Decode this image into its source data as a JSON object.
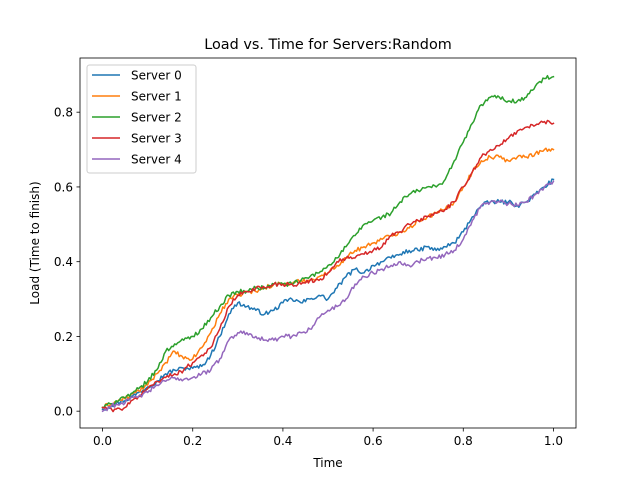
{
  "chart_data": {
    "type": "line",
    "title": "Load vs. Time for Servers:Random",
    "xlabel": "Time",
    "ylabel": "Load (Time to finish)",
    "xlim": [
      -0.05,
      1.05
    ],
    "ylim": [
      -0.045,
      0.945
    ],
    "xticks": [
      0.0,
      0.2,
      0.4,
      0.6,
      0.8,
      1.0
    ],
    "xtick_labels": [
      "0.0",
      "0.2",
      "0.4",
      "0.6",
      "0.8",
      "1.0"
    ],
    "yticks": [
      0.0,
      0.2,
      0.4,
      0.6,
      0.8
    ],
    "ytick_labels": [
      "0.0",
      "0.2",
      "0.4",
      "0.6",
      "0.8"
    ],
    "grid": false,
    "legend_position": "upper-left",
    "series": [
      {
        "name": "Server 0",
        "color": "#1f77b4",
        "x": [
          0.0,
          0.02,
          0.04,
          0.06,
          0.08,
          0.1,
          0.12,
          0.14,
          0.16,
          0.18,
          0.2,
          0.22,
          0.24,
          0.26,
          0.28,
          0.3,
          0.32,
          0.34,
          0.36,
          0.38,
          0.4,
          0.42,
          0.44,
          0.46,
          0.48,
          0.5,
          0.52,
          0.54,
          0.56,
          0.58,
          0.6,
          0.62,
          0.64,
          0.66,
          0.68,
          0.7,
          0.72,
          0.74,
          0.76,
          0.78,
          0.8,
          0.82,
          0.84,
          0.86,
          0.88,
          0.9,
          0.92,
          0.94,
          0.96,
          0.98,
          1.0
        ],
        "y": [
          0.005,
          0.015,
          0.025,
          0.035,
          0.05,
          0.065,
          0.08,
          0.1,
          0.11,
          0.115,
          0.115,
          0.12,
          0.15,
          0.2,
          0.26,
          0.29,
          0.28,
          0.27,
          0.26,
          0.27,
          0.29,
          0.3,
          0.29,
          0.3,
          0.31,
          0.3,
          0.33,
          0.36,
          0.38,
          0.37,
          0.39,
          0.4,
          0.41,
          0.42,
          0.43,
          0.43,
          0.44,
          0.43,
          0.44,
          0.45,
          0.48,
          0.52,
          0.55,
          0.56,
          0.56,
          0.56,
          0.55,
          0.56,
          0.58,
          0.6,
          0.62
        ]
      },
      {
        "name": "Server 1",
        "color": "#ff7f0e",
        "x": [
          0.0,
          0.02,
          0.04,
          0.06,
          0.08,
          0.1,
          0.12,
          0.14,
          0.16,
          0.18,
          0.2,
          0.22,
          0.24,
          0.26,
          0.28,
          0.3,
          0.32,
          0.34,
          0.36,
          0.38,
          0.4,
          0.42,
          0.44,
          0.46,
          0.48,
          0.5,
          0.52,
          0.54,
          0.56,
          0.58,
          0.6,
          0.62,
          0.64,
          0.66,
          0.68,
          0.7,
          0.72,
          0.74,
          0.76,
          0.78,
          0.8,
          0.82,
          0.84,
          0.86,
          0.88,
          0.9,
          0.92,
          0.94,
          0.96,
          0.98,
          1.0
        ],
        "y": [
          0.01,
          0.02,
          0.03,
          0.04,
          0.055,
          0.07,
          0.1,
          0.13,
          0.16,
          0.14,
          0.14,
          0.17,
          0.21,
          0.26,
          0.3,
          0.31,
          0.32,
          0.32,
          0.33,
          0.34,
          0.34,
          0.34,
          0.35,
          0.35,
          0.36,
          0.37,
          0.39,
          0.41,
          0.43,
          0.44,
          0.45,
          0.46,
          0.47,
          0.48,
          0.49,
          0.51,
          0.52,
          0.53,
          0.54,
          0.56,
          0.6,
          0.64,
          0.67,
          0.68,
          0.68,
          0.67,
          0.68,
          0.68,
          0.69,
          0.7,
          0.7
        ]
      },
      {
        "name": "Server 2",
        "color": "#2ca02c",
        "x": [
          0.0,
          0.02,
          0.04,
          0.06,
          0.08,
          0.1,
          0.12,
          0.14,
          0.16,
          0.18,
          0.2,
          0.22,
          0.24,
          0.26,
          0.28,
          0.3,
          0.32,
          0.34,
          0.36,
          0.38,
          0.4,
          0.42,
          0.44,
          0.46,
          0.48,
          0.5,
          0.52,
          0.54,
          0.56,
          0.58,
          0.6,
          0.62,
          0.64,
          0.66,
          0.68,
          0.7,
          0.72,
          0.74,
          0.76,
          0.78,
          0.8,
          0.82,
          0.84,
          0.86,
          0.88,
          0.9,
          0.92,
          0.94,
          0.96,
          0.98,
          1.0
        ],
        "y": [
          0.01,
          0.02,
          0.035,
          0.04,
          0.06,
          0.08,
          0.11,
          0.16,
          0.18,
          0.19,
          0.2,
          0.22,
          0.25,
          0.28,
          0.31,
          0.32,
          0.32,
          0.33,
          0.33,
          0.34,
          0.34,
          0.34,
          0.35,
          0.36,
          0.37,
          0.39,
          0.41,
          0.44,
          0.47,
          0.5,
          0.51,
          0.52,
          0.53,
          0.56,
          0.58,
          0.59,
          0.6,
          0.6,
          0.62,
          0.67,
          0.72,
          0.77,
          0.82,
          0.84,
          0.84,
          0.83,
          0.83,
          0.84,
          0.87,
          0.89,
          0.895
        ]
      },
      {
        "name": "Server 3",
        "color": "#d62728",
        "x": [
          0.0,
          0.02,
          0.04,
          0.06,
          0.08,
          0.1,
          0.12,
          0.14,
          0.16,
          0.18,
          0.2,
          0.22,
          0.24,
          0.26,
          0.28,
          0.3,
          0.32,
          0.34,
          0.36,
          0.38,
          0.4,
          0.42,
          0.44,
          0.46,
          0.48,
          0.5,
          0.52,
          0.54,
          0.56,
          0.58,
          0.6,
          0.62,
          0.64,
          0.66,
          0.68,
          0.7,
          0.72,
          0.74,
          0.76,
          0.78,
          0.8,
          0.82,
          0.84,
          0.86,
          0.88,
          0.9,
          0.92,
          0.94,
          0.96,
          0.98,
          1.0
        ],
        "y": [
          0.01,
          0.005,
          0.005,
          0.02,
          0.04,
          0.06,
          0.08,
          0.09,
          0.1,
          0.11,
          0.13,
          0.15,
          0.17,
          0.22,
          0.28,
          0.31,
          0.32,
          0.33,
          0.33,
          0.34,
          0.34,
          0.34,
          0.34,
          0.35,
          0.35,
          0.37,
          0.4,
          0.41,
          0.41,
          0.42,
          0.43,
          0.44,
          0.47,
          0.48,
          0.5,
          0.51,
          0.52,
          0.53,
          0.54,
          0.56,
          0.6,
          0.64,
          0.68,
          0.7,
          0.71,
          0.73,
          0.75,
          0.76,
          0.765,
          0.775,
          0.77
        ]
      },
      {
        "name": "Server 4",
        "color": "#9467bd",
        "x": [
          0.0,
          0.02,
          0.04,
          0.06,
          0.08,
          0.1,
          0.12,
          0.14,
          0.16,
          0.18,
          0.2,
          0.22,
          0.24,
          0.26,
          0.28,
          0.3,
          0.32,
          0.34,
          0.36,
          0.38,
          0.4,
          0.42,
          0.44,
          0.46,
          0.48,
          0.5,
          0.52,
          0.54,
          0.56,
          0.58,
          0.6,
          0.62,
          0.64,
          0.66,
          0.68,
          0.7,
          0.72,
          0.74,
          0.76,
          0.78,
          0.8,
          0.82,
          0.84,
          0.86,
          0.88,
          0.9,
          0.92,
          0.94,
          0.96,
          0.98,
          1.0
        ],
        "y": [
          0.0,
          0.015,
          0.02,
          0.03,
          0.04,
          0.05,
          0.07,
          0.08,
          0.09,
          0.085,
          0.09,
          0.1,
          0.11,
          0.14,
          0.19,
          0.21,
          0.21,
          0.2,
          0.19,
          0.19,
          0.2,
          0.2,
          0.21,
          0.22,
          0.25,
          0.27,
          0.28,
          0.3,
          0.34,
          0.36,
          0.37,
          0.38,
          0.39,
          0.4,
          0.39,
          0.4,
          0.41,
          0.41,
          0.42,
          0.43,
          0.46,
          0.51,
          0.55,
          0.56,
          0.56,
          0.555,
          0.55,
          0.56,
          0.58,
          0.6,
          0.615
        ]
      }
    ]
  }
}
